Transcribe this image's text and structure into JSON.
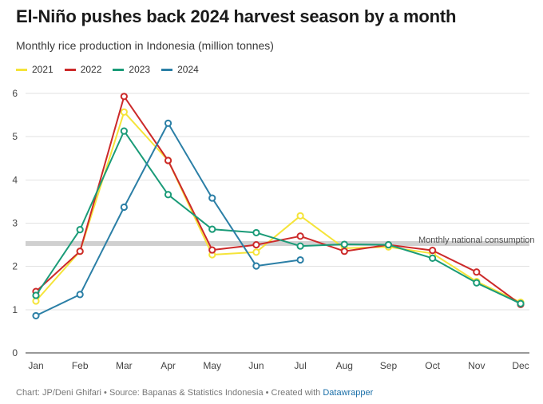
{
  "header": {
    "title": "El-Niño pushes back 2024 harvest season by a month",
    "subtitle": "Monthly rice production in Indonesia (million tonnes)"
  },
  "footer": {
    "credit_text": "Chart: JP/Deni Ghifari • Source: Bapanas & Statistics Indonesia • Created with ",
    "link_label": "Datawrapper"
  },
  "chart_data": {
    "type": "line",
    "x": [
      "Jan",
      "Feb",
      "Mar",
      "Apr",
      "May",
      "Jun",
      "Jul",
      "Aug",
      "Sep",
      "Oct",
      "Nov",
      "Dec"
    ],
    "ylim": [
      0,
      6
    ],
    "yticks": [
      0,
      1,
      2,
      3,
      4,
      5,
      6
    ],
    "grid": true,
    "legend_position": "top-left",
    "series": [
      {
        "name": "2021",
        "color": "#f5e43a",
        "values": [
          1.2,
          2.35,
          5.57,
          4.45,
          2.27,
          2.33,
          3.17,
          2.42,
          2.45,
          2.3,
          1.65,
          1.17
        ]
      },
      {
        "name": "2022",
        "color": "#cc2a2a",
        "values": [
          1.42,
          2.35,
          5.93,
          4.45,
          2.38,
          2.5,
          2.7,
          2.35,
          2.5,
          2.37,
          1.87,
          1.12
        ]
      },
      {
        "name": "2023",
        "color": "#1a9b78",
        "values": [
          1.33,
          2.85,
          5.13,
          3.66,
          2.86,
          2.78,
          2.47,
          2.51,
          2.5,
          2.19,
          1.62,
          1.14
        ]
      },
      {
        "name": "2024",
        "color": "#2b7fa6",
        "values": [
          0.86,
          1.35,
          3.37,
          5.31,
          3.58,
          2.01,
          2.15,
          null,
          null,
          null,
          null,
          null
        ]
      }
    ],
    "reference_line": {
      "label": "Monthly national consumption",
      "value": 2.53,
      "color": "#d0d0d0"
    }
  }
}
